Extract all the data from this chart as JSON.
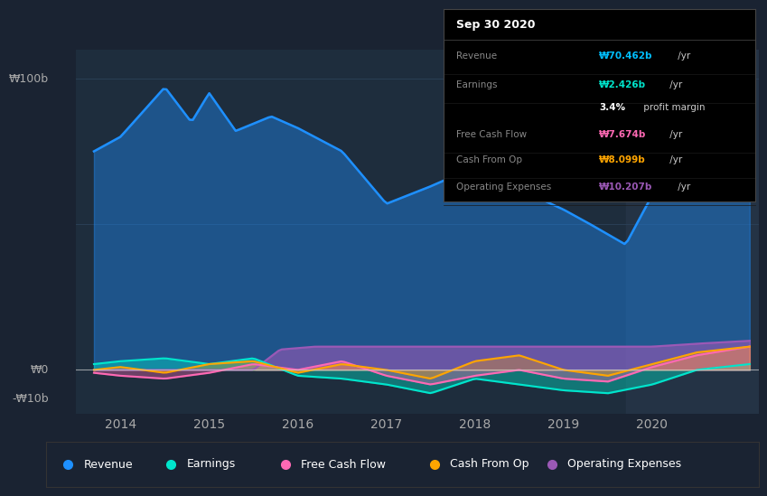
{
  "bg_color": "#1a2332",
  "plot_bg_color": "#1e2d3d",
  "highlight_bg_color": "#263548",
  "grid_color": "#2a3f55",
  "zero_line_color": "#cccccc",
  "ylabel_text": "₩100b",
  "ylabel2_text": "₩0",
  "ylabel3_text": "-₩10b",
  "x_ticks": [
    2014,
    2015,
    2016,
    2017,
    2018,
    2019,
    2020
  ],
  "ylim": [
    -15,
    110
  ],
  "xlim_start": 2013.5,
  "xlim_end": 2021.2,
  "highlight_start": 2019.7,
  "highlight_end": 2021.2,
  "tooltip_title": "Sep 30 2020",
  "tooltip_lines": [
    {
      "label": "Revenue",
      "value": "₩70.462b",
      "suffix": " /yr",
      "color": "#00bfff"
    },
    {
      "label": "Earnings",
      "value": "₩2.426b",
      "suffix": " /yr",
      "color": "#00e5cc"
    },
    {
      "label": "",
      "value": "3.4%",
      "suffix": " profit margin",
      "color": "#ffffff"
    },
    {
      "label": "Free Cash Flow",
      "value": "₩7.674b",
      "suffix": " /yr",
      "color": "#ff69b4"
    },
    {
      "label": "Cash From Op",
      "value": "₩8.099b",
      "suffix": " /yr",
      "color": "#ffa500"
    },
    {
      "label": "Operating Expenses",
      "value": "₩10.207b",
      "suffix": " /yr",
      "color": "#9b59b6"
    }
  ],
  "revenue_color": "#1e90ff",
  "earnings_color": "#00e5cc",
  "fcf_color": "#ff69b4",
  "cashop_color": "#ffa500",
  "opex_color": "#9b59b6",
  "legend_items": [
    {
      "label": "Revenue",
      "color": "#1e90ff"
    },
    {
      "label": "Earnings",
      "color": "#00e5cc"
    },
    {
      "label": "Free Cash Flow",
      "color": "#ff69b4"
    },
    {
      "label": "Cash From Op",
      "color": "#ffa500"
    },
    {
      "label": "Operating Expenses",
      "color": "#9b59b6"
    }
  ]
}
